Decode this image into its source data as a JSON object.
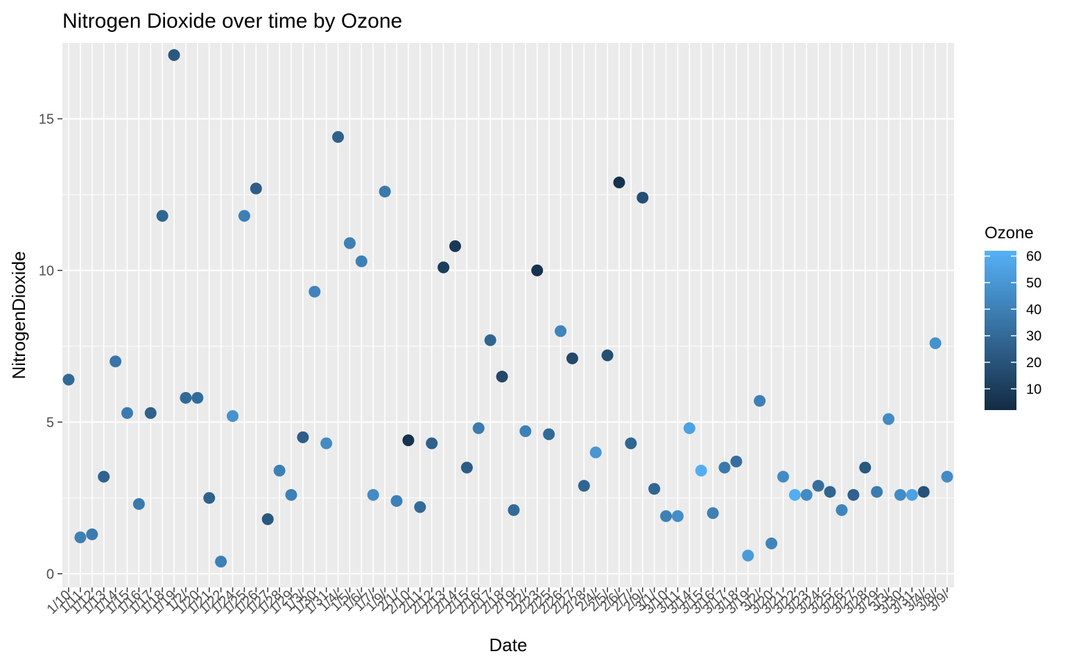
{
  "chart_data": {
    "type": "scatter",
    "title": "Nitrogen Dioxide over time by Ozone",
    "xlabel": "Date",
    "ylabel": "NitrogenDioxide",
    "ylim": [
      -0.45,
      17.5
    ],
    "yticks": [
      0,
      5,
      10,
      15
    ],
    "grid": true,
    "x_categories": [
      "1/10/",
      "1/11/",
      "1/12/",
      "1/13/",
      "1/14/",
      "1/15/",
      "1/16/",
      "1/17/",
      "1/18/",
      "1/19/",
      "1/2/",
      "1/20/",
      "1/21/",
      "1/22/",
      "1/24/",
      "1/25/",
      "1/26/",
      "1/27/",
      "1/28/",
      "1/29/",
      "1/3/",
      "1/30/",
      "1/31/",
      "1/4/",
      "1/5/",
      "1/6/",
      "1/7/",
      "1/9/",
      "2/1/",
      "2/10/",
      "2/11/",
      "2/12/",
      "2/13/",
      "2/14/",
      "2/15/",
      "2/16/",
      "2/17/",
      "2/18/",
      "2/19/",
      "2/2/",
      "2/23/",
      "2/25/",
      "2/26/",
      "2/27/",
      "2/28/",
      "2/4/",
      "2/5/",
      "2/6/",
      "2/7/",
      "2/9/",
      "3/1/",
      "3/10/",
      "3/11/",
      "3/14/",
      "3/15/",
      "3/16/",
      "3/17/",
      "3/18/",
      "3/19/",
      "3/2/",
      "3/20/",
      "3/21/",
      "3/22/",
      "3/23/",
      "3/24/",
      "3/25/",
      "3/26/",
      "3/27/",
      "3/28/",
      "3/29/",
      "3/3/",
      "3/30/",
      "3/31/",
      "3/4/",
      "3/8/",
      "3/9/"
    ],
    "x_tick_labels": [
      "1/10",
      "1/11",
      "1/12",
      "1/13",
      "1/14",
      "1/15",
      "1/16",
      "1/17",
      "1/18",
      "1/19",
      "1/2/",
      "1/20",
      "1/21",
      "1/22",
      "1/24",
      "1/25",
      "1/26",
      "1/27",
      "1/28",
      "1/29",
      "1/3/",
      "1/30",
      "1/31",
      "1/4/",
      "1/5/",
      "1/6/",
      "1/7/",
      "1/9/",
      "2/1/",
      "2/10",
      "2/11",
      "2/12",
      "2/13",
      "2/14",
      "2/15",
      "2/16",
      "2/17",
      "2/18",
      "2/19",
      "2/2/",
      "2/23",
      "2/25",
      "2/26",
      "2/27",
      "2/28",
      "2/4/",
      "2/5/",
      "2/6/",
      "2/7/",
      "2/9/",
      "3/1/",
      "3/10",
      "3/11",
      "3/14",
      "3/15",
      "3/16",
      "3/17",
      "3/18",
      "3/19",
      "3/2/",
      "3/20",
      "3/21",
      "3/22",
      "3/23",
      "3/24",
      "3/25",
      "3/26",
      "3/27",
      "3/28",
      "3/29",
      "3/3/",
      "3/30",
      "3/31",
      "3/4/",
      "3/8/",
      "3/9/"
    ],
    "y_values": [
      6.4,
      1.2,
      1.3,
      3.2,
      7.0,
      5.3,
      2.3,
      5.3,
      11.8,
      17.1,
      5.8,
      5.8,
      2.5,
      0.4,
      5.2,
      11.8,
      12.7,
      1.8,
      3.4,
      2.6,
      4.5,
      9.3,
      4.3,
      14.4,
      10.9,
      10.3,
      2.6,
      12.6,
      2.4,
      4.4,
      2.2,
      4.3,
      10.1,
      10.8,
      3.5,
      4.8,
      7.7,
      6.5,
      2.1,
      4.7,
      10.0,
      4.6,
      8.0,
      7.1,
      2.9,
      4.0,
      7.2,
      12.9,
      4.3,
      12.4,
      2.8,
      1.9,
      1.9,
      4.8,
      3.4,
      2.0,
      3.5,
      3.7,
      0.6,
      5.7,
      1.0,
      3.2,
      2.6,
      2.6,
      2.9,
      2.7,
      2.1,
      2.6,
      3.5,
      2.7,
      5.1,
      2.6,
      2.6,
      2.7,
      7.6,
      3.2
    ],
    "color_values": [
      30,
      40,
      38,
      27,
      35,
      38,
      37,
      26,
      28,
      22,
      30,
      31,
      26,
      40,
      48,
      40,
      25,
      22,
      40,
      40,
      25,
      42,
      45,
      26,
      40,
      40,
      45,
      37,
      40,
      5,
      30,
      26,
      10,
      8,
      24,
      38,
      28,
      15,
      30,
      40,
      5,
      30,
      42,
      15,
      28,
      50,
      18,
      5,
      28,
      18,
      28,
      40,
      46,
      55,
      60,
      40,
      37,
      32,
      52,
      40,
      42,
      45,
      60,
      45,
      32,
      28,
      42,
      26,
      22,
      38,
      45,
      45,
      55,
      20,
      48,
      45
    ],
    "legend": {
      "title": "Ozone",
      "ticks": [
        10,
        20,
        30,
        40,
        50,
        60
      ],
      "range": [
        2,
        62
      ],
      "low_color": "#132b43",
      "high_color": "#56b1f7"
    },
    "panel_background": "#ebebeb",
    "grid_color": "#ffffff"
  }
}
